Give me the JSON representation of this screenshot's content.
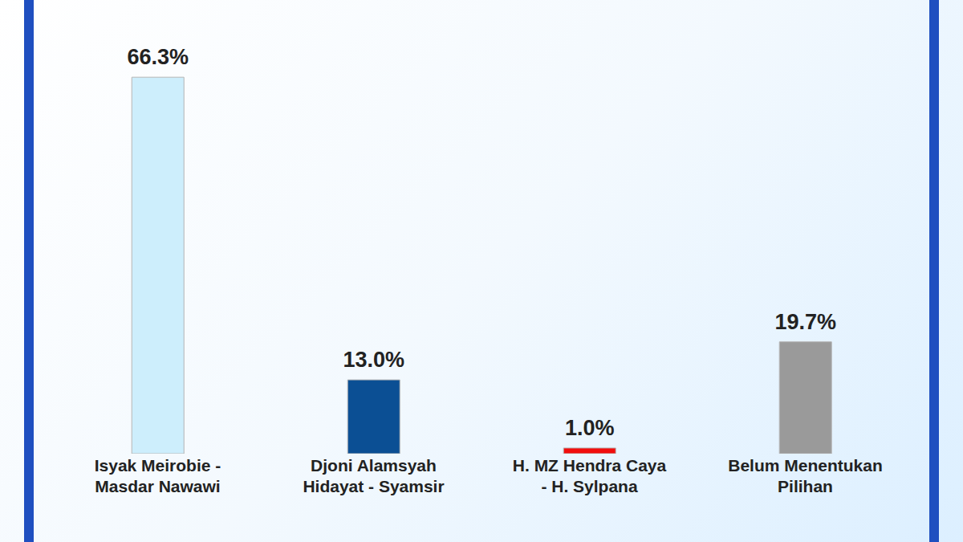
{
  "chart_data": {
    "type": "bar",
    "categories": [
      "Isyak Meirobie - Masdar Nawawi",
      "Djoni Alamsyah Hidayat - Syamsir",
      "H. MZ Hendra Caya - H. Sylpana",
      "Belum Menentukan Pilihan"
    ],
    "values": [
      66.3,
      13.0,
      1.0,
      19.7
    ],
    "value_labels": [
      "66.3%",
      "13.0%",
      "1.0%",
      "19.7%"
    ],
    "colors": [
      "#cdeefc",
      "#0b4f94",
      "#f20d0d",
      "#9a9a9a"
    ],
    "ylim": [
      0,
      70
    ],
    "data_labels": true,
    "tick_labels": "x",
    "grid": false
  }
}
